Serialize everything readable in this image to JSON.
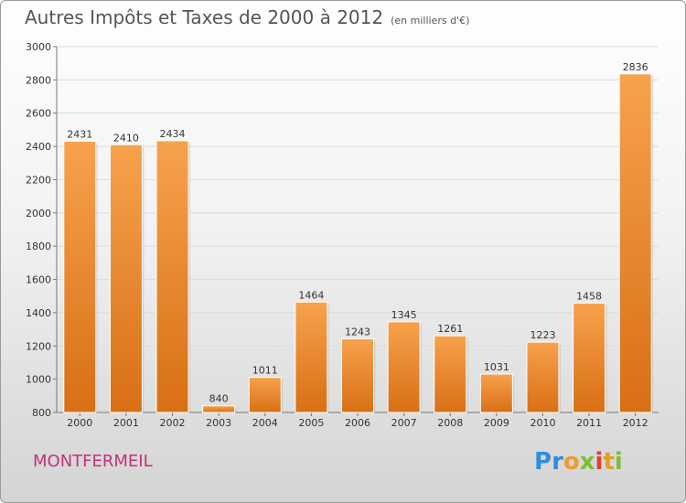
{
  "header": {
    "title": "Autres Impôts et Taxes de 2000 à 2012",
    "unit": "(en milliers d'€)"
  },
  "footer": {
    "place": "MONTFERMEIL",
    "logo_letters": [
      "P",
      "r",
      "o",
      "x",
      "i",
      "t",
      "i"
    ]
  },
  "colors": {
    "bar_top": "#f7a24d",
    "bar_bottom": "#d86f15",
    "grid": "#dcdcdc",
    "place": "#c0327e"
  },
  "chart_data": {
    "type": "bar",
    "categories": [
      "2000",
      "2001",
      "2002",
      "2003",
      "2004",
      "2005",
      "2006",
      "2007",
      "2008",
      "2009",
      "2010",
      "2011",
      "2012"
    ],
    "values": [
      2431,
      2410,
      2434,
      840,
      1011,
      1464,
      1243,
      1345,
      1261,
      1031,
      1223,
      1458,
      2836
    ],
    "title": "Autres Impôts et Taxes de 2000 à 2012",
    "ylim": [
      800,
      3000
    ],
    "yticks": [
      800,
      1000,
      1200,
      1400,
      1600,
      1800,
      2000,
      2200,
      2400,
      2600,
      2800,
      3000
    ],
    "grid": true,
    "legend": "none"
  }
}
